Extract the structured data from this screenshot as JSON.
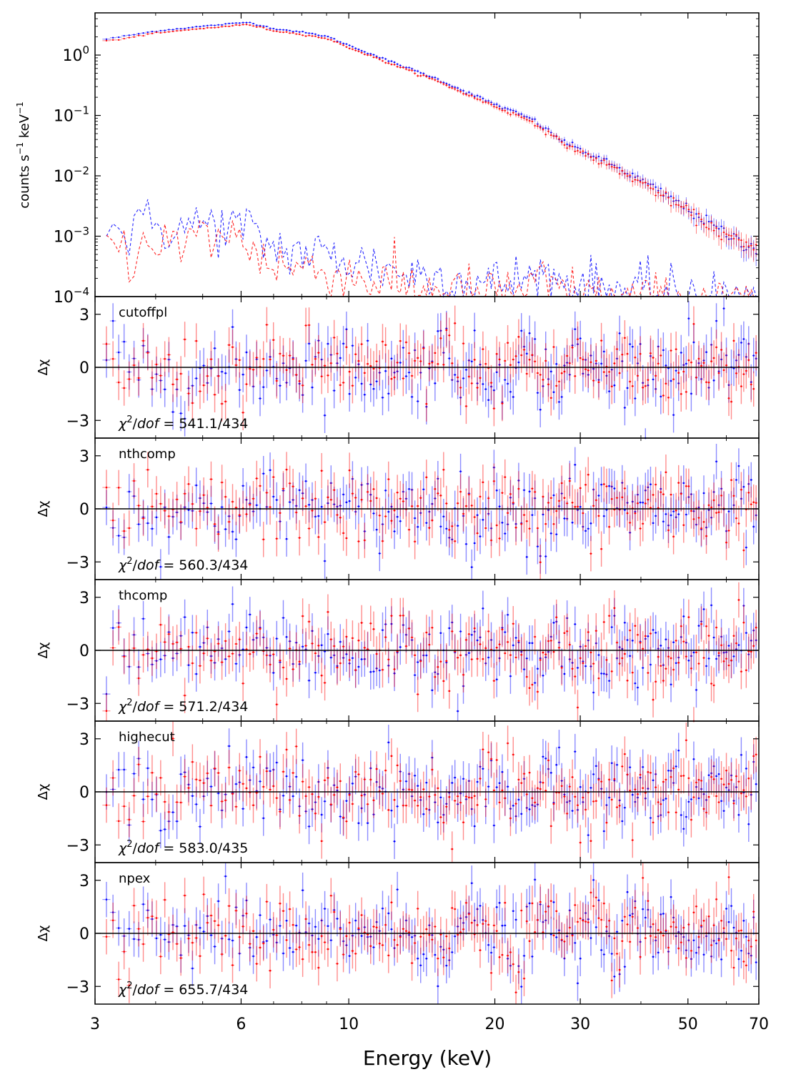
{
  "chart_data": {
    "type": "scatter",
    "description": "Spectrum (top) with five residual panels for different continuum models",
    "xlabel": "Energy (keV)",
    "xscale": "log",
    "xlim": [
      3,
      70
    ],
    "xticks": [
      3,
      6,
      10,
      20,
      30,
      50,
      70
    ],
    "xtick_labels": [
      "3",
      "6",
      "10",
      "20",
      "30",
      "50",
      "70"
    ],
    "series_colors": {
      "fpma": "#0000ff",
      "fpmb": "#ff0000"
    },
    "spectrum": {
      "ylabel_base": "counts s",
      "ylabel_mid": " keV",
      "ylabel_exp": "−1",
      "yscale": "log",
      "ylim": [
        0.0001,
        5
      ],
      "ytick_values": [
        1,
        0.1,
        0.01,
        0.001,
        0.0001
      ],
      "ytick_base": "10",
      "ytick_exps": [
        "0",
        "−1",
        "−2",
        "−3",
        "−4"
      ],
      "source_model": {
        "breakpoints_keV": [
          3.05,
          4.0,
          5.0,
          6.2,
          7.0,
          8.0,
          9.0,
          10.0,
          12.0,
          15.0,
          18.0,
          21.0,
          24.0,
          27.0,
          30.0,
          35.0,
          40.0,
          45.0,
          50.0,
          55.0,
          60.0,
          65.0,
          70.0
        ],
        "rate_fpma": [
          1.75,
          2.5,
          3.0,
          3.5,
          2.75,
          2.4,
          2.05,
          1.45,
          0.82,
          0.42,
          0.22,
          0.13,
          0.085,
          0.042,
          0.027,
          0.015,
          0.0085,
          0.0048,
          0.0028,
          0.0017,
          0.0011,
          0.0008,
          0.0006
        ],
        "rate_fpmb_ratio": 0.92
      },
      "background": {
        "breakpoints_keV": [
          3.05,
          3.5,
          4.0,
          4.5,
          5.0,
          6.0,
          7.0,
          8.0,
          10.0,
          13.0,
          16.0,
          20.0,
          25.0,
          30.0,
          40.0,
          70.0
        ],
        "rate_fpma": [
          0.0015,
          0.0011,
          0.0016,
          0.0013,
          0.0016,
          0.0014,
          0.00065,
          0.00055,
          0.0004,
          0.00025,
          0.0002,
          0.00016,
          0.00022,
          0.00015,
          0.00011,
          9e-05
        ],
        "rate_fpmb": [
          0.0014,
          0.0005,
          0.0011,
          0.0006,
          0.0011,
          0.0009,
          0.00035,
          0.0003,
          0.00022,
          0.00015,
          0.00012,
          0.0001,
          0.00016,
          0.0001,
          8e-05,
          7e-05
        ]
      }
    },
    "residual_ylabel": "Δχ",
    "residual_ylim": [
      -4,
      4
    ],
    "residual_yticks": [
      3,
      0,
      -3
    ],
    "residual_ytick_labels": [
      "3",
      "0",
      "−3"
    ],
    "panels": [
      {
        "model": "cutoffpl",
        "chi2": "541.1",
        "dof": "434"
      },
      {
        "model": "nthcomp",
        "chi2": "560.3",
        "dof": "434"
      },
      {
        "model": "thcomp",
        "chi2": "571.2",
        "dof": "434"
      },
      {
        "model": "highecut",
        "chi2": "583.0",
        "dof": "435"
      },
      {
        "model": "npex",
        "chi2": "655.7",
        "dof": "434"
      }
    ],
    "chi_prefix": "χ",
    "chi_exp": "2",
    "chi_slash": "/",
    "chi_dof_word": "dof",
    "chi_eq": " = ",
    "n_bins_per_series": 218
  }
}
